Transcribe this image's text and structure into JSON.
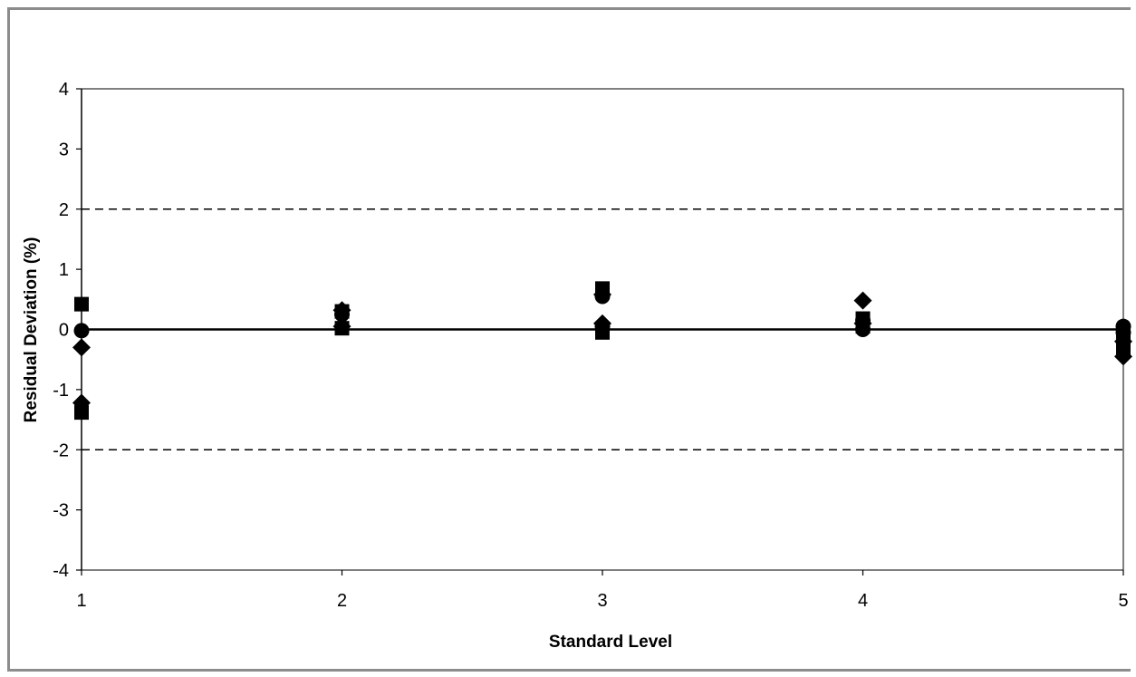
{
  "chart_data": {
    "type": "scatter",
    "title": "",
    "xlabel": "Standard Level",
    "ylabel": "Residual Deviation (%)",
    "xlim": [
      1,
      5
    ],
    "ylim": [
      -4,
      4
    ],
    "x_ticks": [
      "1",
      "2",
      "3",
      "4",
      "5"
    ],
    "y_ticks": [
      "4",
      "3",
      "2",
      "1",
      "0",
      "-1",
      "-2",
      "-3",
      "-4"
    ],
    "grid": false,
    "legend": "none",
    "reference_lines": [
      {
        "y": 0,
        "style": "solid"
      },
      {
        "y": 2,
        "style": "dashed"
      },
      {
        "y": -2,
        "style": "dashed"
      }
    ],
    "series": [
      {
        "marker": "square",
        "color": "#000000",
        "points": [
          {
            "x": 1,
            "y": 0.42
          },
          {
            "x": 1,
            "y": -1.38
          },
          {
            "x": 2,
            "y": 0.02
          },
          {
            "x": 2,
            "y": 0.3
          },
          {
            "x": 3,
            "y": 0.68
          },
          {
            "x": 3,
            "y": -0.05
          },
          {
            "x": 4,
            "y": 0.05
          },
          {
            "x": 4,
            "y": 0.18
          },
          {
            "x": 5,
            "y": -0.1
          },
          {
            "x": 5,
            "y": -0.3
          }
        ]
      },
      {
        "marker": "diamond",
        "color": "#000000",
        "points": [
          {
            "x": 1,
            "y": -0.3
          },
          {
            "x": 1,
            "y": -1.22
          },
          {
            "x": 2,
            "y": 0.05
          },
          {
            "x": 2,
            "y": 0.32
          },
          {
            "x": 3,
            "y": 0.1
          },
          {
            "x": 3,
            "y": 0.58
          },
          {
            "x": 4,
            "y": 0.48
          },
          {
            "x": 4,
            "y": 0.1
          },
          {
            "x": 5,
            "y": -0.45
          },
          {
            "x": 5,
            "y": -0.2
          }
        ]
      },
      {
        "marker": "circle",
        "color": "#000000",
        "points": [
          {
            "x": 1,
            "y": -0.02
          },
          {
            "x": 2,
            "y": 0.25
          },
          {
            "x": 3,
            "y": 0.55
          },
          {
            "x": 3,
            "y": 0.05
          },
          {
            "x": 4,
            "y": 0.0
          },
          {
            "x": 4,
            "y": 0.15
          },
          {
            "x": 5,
            "y": 0.05
          },
          {
            "x": 5,
            "y": -0.05
          }
        ]
      }
    ]
  }
}
